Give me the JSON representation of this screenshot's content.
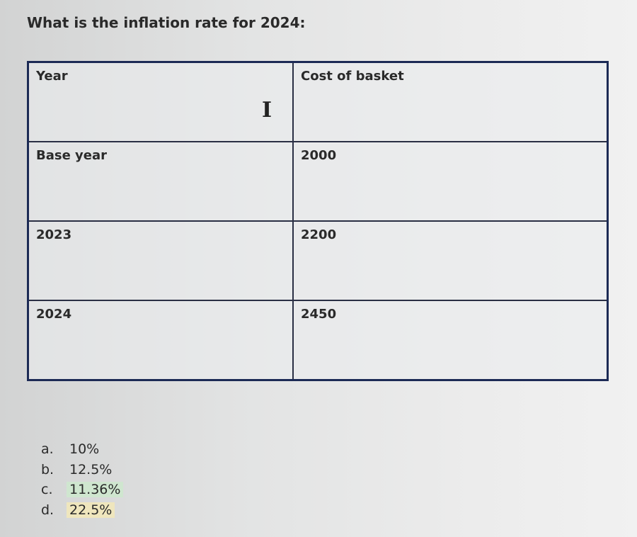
{
  "question": "What is the inflation rate  for 2024:",
  "table": {
    "headers": [
      "Year",
      "Cost of basket"
    ],
    "rows": [
      [
        "Base year",
        "2000"
      ],
      [
        "2023",
        "2200"
      ],
      [
        "2024",
        "2450"
      ]
    ]
  },
  "cursor_icon": "text-cursor-ibeam",
  "answers": [
    {
      "letter": "a.",
      "value": "10%"
    },
    {
      "letter": "b.",
      "value": "12.5%"
    },
    {
      "letter": "c.",
      "value": "11.36%",
      "highlight": "#cfe6cf"
    },
    {
      "letter": "d.",
      "value": "22.5%",
      "highlight": "#efe6bd"
    }
  ]
}
